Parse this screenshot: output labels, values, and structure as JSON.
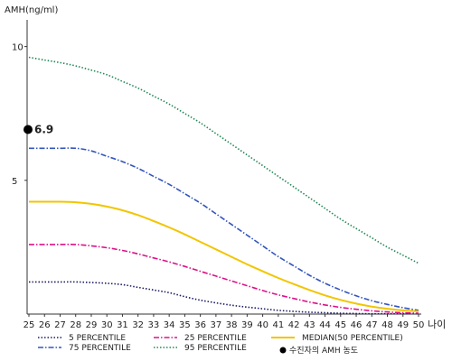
{
  "chart_data": {
    "type": "line",
    "ylabel": "AMH(ng/ml)",
    "xlabel": "나이",
    "xlim": [
      25,
      50
    ],
    "ylim": [
      0,
      11
    ],
    "x": [
      25,
      26,
      27,
      28,
      29,
      30,
      31,
      32,
      33,
      34,
      35,
      36,
      37,
      38,
      39,
      40,
      41,
      42,
      43,
      44,
      45,
      46,
      47,
      48,
      49,
      50
    ],
    "xticks": [
      "25",
      "26",
      "27",
      "28",
      "29",
      "30",
      "31",
      "32",
      "33",
      "34",
      "35",
      "36",
      "37",
      "38",
      "39",
      "40",
      "41",
      "42",
      "43",
      "44",
      "45",
      "46",
      "47",
      "48",
      "49",
      "50"
    ],
    "yticks": [
      5,
      10
    ],
    "grid": false,
    "legend_position": "bottom",
    "series": [
      {
        "name": "5 PERCENTILE",
        "color": "#1a1a66",
        "dash": "dotted",
        "values": [
          1.2,
          1.2,
          1.2,
          1.2,
          1.18,
          1.15,
          1.1,
          1.0,
          0.9,
          0.8,
          0.65,
          0.52,
          0.42,
          0.33,
          0.26,
          0.2,
          0.14,
          0.1,
          0.07,
          0.05,
          0.03,
          0.02,
          0.01,
          0.01,
          0.01,
          0.01
        ]
      },
      {
        "name": "75 PERCENTILE",
        "color": "#3355bb",
        "dash": "dashdot",
        "values": [
          6.2,
          6.2,
          6.2,
          6.2,
          6.1,
          5.9,
          5.7,
          5.45,
          5.15,
          4.85,
          4.5,
          4.15,
          3.75,
          3.35,
          2.95,
          2.55,
          2.15,
          1.8,
          1.45,
          1.15,
          0.9,
          0.68,
          0.5,
          0.36,
          0.24,
          0.14
        ]
      },
      {
        "name": "25 PERCENTILE",
        "color": "#dd1188",
        "dash": "dashdot",
        "values": [
          2.6,
          2.6,
          2.6,
          2.6,
          2.55,
          2.48,
          2.38,
          2.25,
          2.1,
          1.95,
          1.78,
          1.6,
          1.42,
          1.24,
          1.06,
          0.88,
          0.72,
          0.58,
          0.45,
          0.34,
          0.25,
          0.18,
          0.12,
          0.08,
          0.05,
          0.03
        ]
      },
      {
        "name": "95 PERCENTILE",
        "color": "#228855",
        "dash": "dotted",
        "values": [
          9.6,
          9.5,
          9.4,
          9.28,
          9.12,
          8.95,
          8.7,
          8.45,
          8.15,
          7.85,
          7.5,
          7.15,
          6.75,
          6.35,
          5.95,
          5.55,
          5.15,
          4.75,
          4.35,
          3.95,
          3.55,
          3.2,
          2.85,
          2.5,
          2.2,
          1.9
        ]
      },
      {
        "name": "MEDIAN(50 PERCENTILE)",
        "color": "#f2c500",
        "dash": "solid",
        "values": [
          4.2,
          4.2,
          4.2,
          4.18,
          4.12,
          4.02,
          3.88,
          3.7,
          3.48,
          3.24,
          2.98,
          2.7,
          2.42,
          2.14,
          1.86,
          1.6,
          1.35,
          1.12,
          0.9,
          0.7,
          0.53,
          0.39,
          0.28,
          0.2,
          0.14,
          0.1
        ]
      }
    ],
    "marker": {
      "name": "수진자의 AMH 농도",
      "x": 25,
      "y": 6.9,
      "label": "6.9",
      "color": "#000000"
    }
  }
}
